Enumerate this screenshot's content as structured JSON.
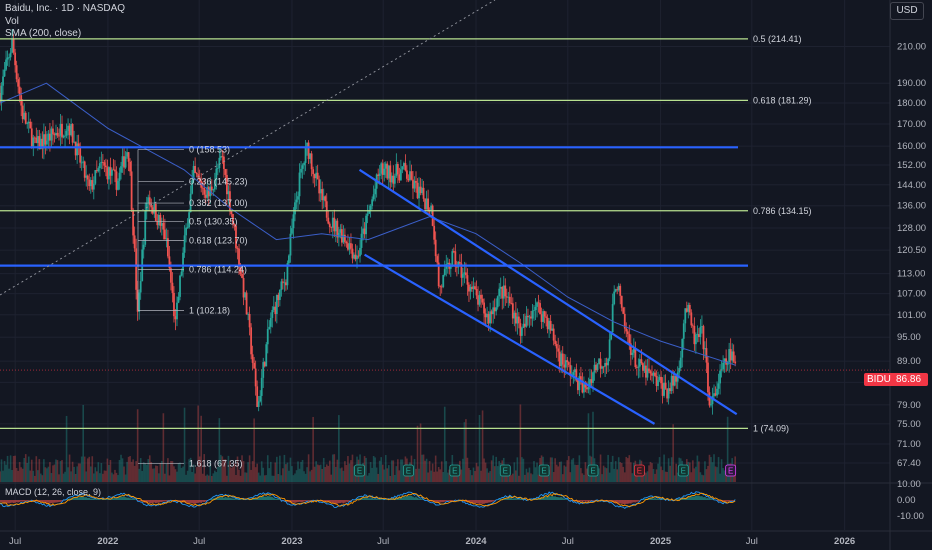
{
  "header": {
    "title": "Baidu, Inc. · 1D · NASDAQ",
    "vol_label": "Vol",
    "sma_label": "SMA (200, close)",
    "currency_button": "USD"
  },
  "price_tag": {
    "symbol": "BIDU",
    "price": "86.86",
    "color": "#f23645"
  },
  "colors": {
    "background": "#131722",
    "up_candle": "#26a69a",
    "down_candle": "#ef5350",
    "fib_line": "#b7e08f",
    "channel_line": "#2962ff",
    "sma_line": "#3b5fc9",
    "macd_line": "#2196f3",
    "signal_line": "#ff9800"
  },
  "chart_data": {
    "type": "candlestick",
    "symbol": "BIDU",
    "interval": "1D",
    "exchange": "NASDAQ",
    "last_price": 86.86,
    "y_axis": {
      "scale": "log",
      "range": [
        64,
        232
      ],
      "ticks": [
        "210.00",
        "190.00",
        "180.00",
        "170.00",
        "160.00",
        "152.00",
        "144.00",
        "136.00",
        "128.00",
        "120.50",
        "113.00",
        "107.00",
        "101.00",
        "95.00",
        "89.00",
        "84.00",
        "79.00",
        "75.00",
        "71.00",
        "67.40"
      ]
    },
    "x_axis": {
      "range": [
        "2021-06-01",
        "2026-04-01"
      ],
      "ticks": [
        {
          "label": "Jul",
          "date": "2021-07-01"
        },
        {
          "label": "2022",
          "date": "2022-01-01"
        },
        {
          "label": "Jul",
          "date": "2022-07-01"
        },
        {
          "label": "2023",
          "date": "2023-01-01"
        },
        {
          "label": "Jul",
          "date": "2023-07-01"
        },
        {
          "label": "2024",
          "date": "2024-01-01"
        },
        {
          "label": "Jul",
          "date": "2024-07-01"
        },
        {
          "label": "2025",
          "date": "2025-01-01"
        },
        {
          "label": "Jul",
          "date": "2025-07-01"
        },
        {
          "label": "2026",
          "date": "2026-01-01"
        }
      ]
    },
    "price_path": [
      [
        "2021-06-01",
        185
      ],
      [
        "2021-06-25",
        212
      ],
      [
        "2021-07-15",
        175
      ],
      [
        "2021-08-10",
        160
      ],
      [
        "2021-09-15",
        165
      ],
      [
        "2021-10-15",
        170
      ],
      [
        "2021-11-05",
        155
      ],
      [
        "2021-11-25",
        142
      ],
      [
        "2021-12-20",
        152
      ],
      [
        "2022-01-20",
        145
      ],
      [
        "2022-02-10",
        160
      ],
      [
        "2022-03-01",
        100
      ],
      [
        "2022-03-20",
        140
      ],
      [
        "2022-04-25",
        125
      ],
      [
        "2022-05-15",
        98
      ],
      [
        "2022-06-20",
        148
      ],
      [
        "2022-07-20",
        140
      ],
      [
        "2022-08-15",
        155
      ],
      [
        "2022-09-15",
        120
      ],
      [
        "2022-10-05",
        100
      ],
      [
        "2022-10-25",
        78
      ],
      [
        "2022-11-20",
        100
      ],
      [
        "2022-12-20",
        112
      ],
      [
        "2023-01-15",
        145
      ],
      [
        "2023-02-01",
        160
      ],
      [
        "2023-02-25",
        140
      ],
      [
        "2023-03-20",
        130
      ],
      [
        "2023-04-15",
        125
      ],
      [
        "2023-05-10",
        118
      ],
      [
        "2023-06-05",
        135
      ],
      [
        "2023-06-25",
        150
      ],
      [
        "2023-07-20",
        148
      ],
      [
        "2023-08-10",
        150
      ],
      [
        "2023-09-05",
        142
      ],
      [
        "2023-10-05",
        135
      ],
      [
        "2023-10-20",
        108
      ],
      [
        "2023-11-15",
        118
      ],
      [
        "2023-12-10",
        112
      ],
      [
        "2024-01-05",
        105
      ],
      [
        "2024-01-25",
        100
      ],
      [
        "2024-02-20",
        108
      ],
      [
        "2024-03-10",
        104
      ],
      [
        "2024-04-01",
        96
      ],
      [
        "2024-04-25",
        104
      ],
      [
        "2024-05-20",
        100
      ],
      [
        "2024-06-15",
        90
      ],
      [
        "2024-07-10",
        86
      ],
      [
        "2024-08-05",
        82
      ],
      [
        "2024-08-25",
        88
      ],
      [
        "2024-09-20",
        90
      ],
      [
        "2024-10-05",
        112
      ],
      [
        "2024-10-20",
        98
      ],
      [
        "2024-11-15",
        88
      ],
      [
        "2024-12-05",
        86
      ],
      [
        "2024-12-25",
        84
      ],
      [
        "2025-01-15",
        82
      ],
      [
        "2025-02-05",
        86
      ],
      [
        "2025-02-20",
        104
      ],
      [
        "2025-03-10",
        94
      ],
      [
        "2025-03-25",
        96
      ],
      [
        "2025-04-10",
        78
      ],
      [
        "2025-05-01",
        86
      ],
      [
        "2025-05-20",
        91
      ],
      [
        "2025-05-30",
        86.86
      ]
    ],
    "sma_path": [
      [
        "2021-06-01",
        180
      ],
      [
        "2021-09-01",
        190
      ],
      [
        "2022-01-01",
        168
      ],
      [
        "2022-06-01",
        150
      ],
      [
        "2022-09-01",
        135
      ],
      [
        "2022-12-01",
        124
      ],
      [
        "2023-03-01",
        126
      ],
      [
        "2023-06-01",
        124
      ],
      [
        "2023-10-01",
        132
      ],
      [
        "2024-01-01",
        126
      ],
      [
        "2024-04-01",
        116
      ],
      [
        "2024-07-01",
        106
      ],
      [
        "2024-10-01",
        99
      ],
      [
        "2025-01-01",
        94
      ],
      [
        "2025-05-30",
        88
      ]
    ],
    "fib_levels_long": [
      {
        "label": "0.5 (214.41)",
        "value": 214.41
      },
      {
        "label": "0.618 (181.29)",
        "value": 181.29
      },
      {
        "label": "0.786 (134.15)",
        "value": 134.15
      },
      {
        "label": "1 (74.09)",
        "value": 74.09
      }
    ],
    "fib_levels_short": [
      {
        "label": "0 (158.53)",
        "value": 158.53
      },
      {
        "label": "0.236 (145.23)",
        "value": 145.23
      },
      {
        "label": "0.382 (137.00)",
        "value": 137.0
      },
      {
        "label": "0.5 (130.35)",
        "value": 130.35
      },
      {
        "label": "0.618 (123.70)",
        "value": 123.7
      },
      {
        "label": "0.786 (114.24)",
        "value": 114.24
      },
      {
        "label": "1 (102.18)",
        "value": 102.18
      },
      {
        "label": "1.618 (67.35)",
        "value": 67.35
      }
    ],
    "horizontal_lines": [
      159.5,
      115.5
    ],
    "channel": [
      {
        "start": [
          "2023-05-15",
          150
        ],
        "end": [
          "2025-06-01",
          77
        ]
      },
      {
        "start": [
          "2023-05-25",
          119
        ],
        "end": [
          "2024-12-20",
          75
        ]
      }
    ],
    "earnings_markers": [
      {
        "date": "2023-05-15",
        "type": "up",
        "label": "E"
      },
      {
        "date": "2023-08-20",
        "type": "up",
        "label": "E"
      },
      {
        "date": "2023-11-20",
        "type": "up",
        "label": "E"
      },
      {
        "date": "2024-02-28",
        "type": "up",
        "label": "E"
      },
      {
        "date": "2024-05-15",
        "type": "up",
        "label": "E"
      },
      {
        "date": "2024-08-20",
        "type": "up",
        "label": "E"
      },
      {
        "date": "2024-11-20",
        "type": "down",
        "label": "E"
      },
      {
        "date": "2025-02-15",
        "type": "up",
        "label": "E"
      },
      {
        "date": "2025-05-20",
        "type": "upcoming",
        "label": "E"
      }
    ],
    "macd": {
      "label": "MACD (12, 26, close, 9)",
      "range": [
        -0.5,
        0.3
      ],
      "ticks": [
        "10.00",
        "0.00",
        "-10.00"
      ]
    }
  }
}
